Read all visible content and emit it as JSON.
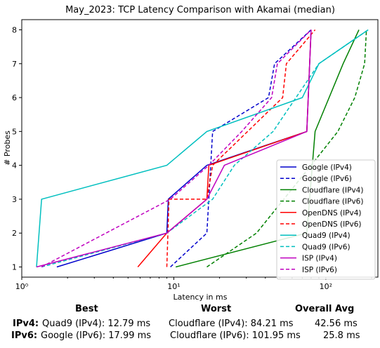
{
  "chart_data": {
    "type": "line",
    "title": "May_2023: TCP Latency Comparison with Akamai (median)",
    "xlabel": "Latency in ms",
    "ylabel": "# Probes",
    "xscale": "log",
    "xlim": [
      1,
      220
    ],
    "ylim": [
      0.7,
      8.3
    ],
    "x_ticks": [
      1,
      10,
      100
    ],
    "x_tick_labels": [
      "10⁰",
      "10¹",
      "10²"
    ],
    "y_ticks": [
      1,
      2,
      3,
      4,
      5,
      6,
      7,
      8
    ],
    "grid": false,
    "legend_position": "lower right",
    "series": [
      {
        "name": "Google (IPv4)",
        "color": "#0000cc",
        "dash": "solid",
        "x": [
          1.7,
          9.0,
          9.2,
          16.5,
          75,
          80
        ],
        "y": [
          1,
          2,
          3,
          4,
          5,
          8
        ]
      },
      {
        "name": "Google (IPv6)",
        "color": "#0000cc",
        "dash": "dashed",
        "x": [
          9.5,
          16.5,
          17.0,
          18.0,
          42,
          46,
          80
        ],
        "y": [
          1,
          2,
          3,
          5,
          6,
          7,
          8
        ]
      },
      {
        "name": "Cloudflare (IPv4)",
        "color": "#008000",
        "dash": "solid",
        "x": [
          10.3,
          75,
          85,
          130,
          165
        ],
        "y": [
          1,
          2,
          5,
          7,
          8
        ]
      },
      {
        "name": "Cloudflare (IPv6)",
        "color": "#008000",
        "dash": "dashed",
        "x": [
          16.5,
          35,
          80,
          120,
          155,
          180,
          185
        ],
        "y": [
          1,
          2,
          4,
          5,
          6,
          7,
          8
        ]
      },
      {
        "name": "OpenDNS (IPv4)",
        "color": "#ff0000",
        "dash": "solid",
        "x": [
          5.8,
          9.0,
          16.5,
          17.0,
          75,
          80
        ],
        "y": [
          1,
          2,
          3,
          4,
          5,
          8
        ]
      },
      {
        "name": "OpenDNS (IPv6)",
        "color": "#ff0000",
        "dash": "dashed",
        "x": [
          9.0,
          9.3,
          16.5,
          18.0,
          52,
          55,
          85
        ],
        "y": [
          1,
          3,
          3,
          4,
          6,
          7,
          8
        ]
      },
      {
        "name": "Quad9 (IPv4)",
        "color": "#00bfbf",
        "dash": "solid",
        "x": [
          1.25,
          1.35,
          9.0,
          16.5,
          70,
          90,
          190
        ],
        "y": [
          1,
          3,
          4,
          5,
          6,
          7,
          8
        ]
      },
      {
        "name": "Quad9 (IPv6)",
        "color": "#00bfbf",
        "dash": "dashed",
        "x": [
          1.35,
          9.0,
          18.0,
          25,
          45,
          90,
          190
        ],
        "y": [
          1,
          2,
          3,
          4,
          5,
          7,
          8
        ]
      },
      {
        "name": "ISP (IPv4)",
        "color": "#bf00bf",
        "dash": "solid",
        "x": [
          1.25,
          9.0,
          16.5,
          21.5,
          75,
          80
        ],
        "y": [
          1,
          2,
          3,
          4,
          5,
          8
        ]
      },
      {
        "name": "ISP (IPv6)",
        "color": "#bf00bf",
        "dash": "dashed",
        "x": [
          1.35,
          9.5,
          17.0,
          28,
          44,
          48,
          80
        ],
        "y": [
          1,
          3,
          4,
          5,
          6,
          7,
          8
        ]
      }
    ]
  },
  "summary": {
    "headers": {
      "best": "Best",
      "worst": "Worst",
      "avg": "Overall Avg"
    },
    "rows": [
      {
        "label": "IPv4:",
        "best": "Quad9 (IPv4): 12.79 ms",
        "worst": "Cloudflare (IPv4): 84.21 ms",
        "avg": "42.56 ms"
      },
      {
        "label": "IPv6:",
        "best": "Google (IPv6): 17.99 ms",
        "worst": "Cloudflare (IPv6): 101.95 ms",
        "avg": "25.8 ms"
      }
    ]
  }
}
